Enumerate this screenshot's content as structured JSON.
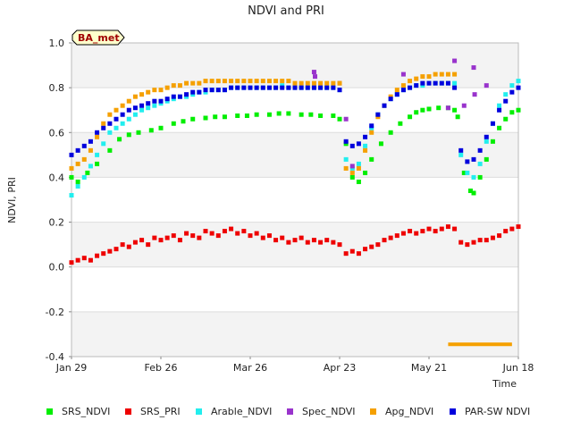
{
  "chart_data": {
    "type": "scatter",
    "title": "NDVI and PRI",
    "site_badge": "BA_met",
    "xlabel": "Time",
    "ylabel": "NDVI, PRI",
    "ylim": [
      -0.4,
      1.0
    ],
    "yticks": [
      -0.4,
      -0.2,
      0.0,
      0.2,
      0.4,
      0.6,
      0.8,
      1.0
    ],
    "ytick_labels": [
      "-0.4",
      "-0.2",
      "0.0",
      "0.2",
      "0.4",
      "0.6",
      "0.8",
      "1.0"
    ],
    "xlim_days": [
      0,
      140
    ],
    "xticks_days": [
      0,
      28,
      56,
      84,
      112,
      140
    ],
    "xtick_labels": [
      "Jan 29",
      "Feb 26",
      "Mar 26",
      "Apr 23",
      "May 21",
      "Jun 18"
    ],
    "colors": {
      "SRS_NDVI": "#00ee00",
      "SRS_PRI": "#ee0000",
      "Arable_NDVI": "#22eeee",
      "Spec_NDVI": "#9933cc",
      "Apg_NDVI": "#f5a000",
      "PAR-SW NDVI": "#0000dd"
    },
    "legend": [
      "SRS_NDVI",
      "SRS_PRI",
      "Arable_NDVI",
      "Spec_NDVI",
      "Apg_NDVI",
      "PAR-SW NDVI"
    ],
    "series": [
      {
        "name": "SRS_NDVI",
        "x": [
          0,
          2,
          5,
          8,
          12,
          15,
          18,
          21,
          25,
          28,
          32,
          35,
          38,
          42,
          45,
          48,
          52,
          55,
          58,
          62,
          65,
          68,
          72,
          75,
          78,
          82,
          84,
          86,
          88,
          90,
          92,
          94,
          97,
          100,
          103,
          106,
          108,
          110,
          112,
          115,
          118,
          120,
          121,
          123,
          125,
          126,
          128,
          130,
          132,
          134,
          136,
          138,
          140
        ],
        "y": [
          0.4,
          0.38,
          0.42,
          0.46,
          0.52,
          0.57,
          0.59,
          0.6,
          0.61,
          0.62,
          0.64,
          0.65,
          0.66,
          0.665,
          0.67,
          0.67,
          0.675,
          0.675,
          0.68,
          0.68,
          0.685,
          0.685,
          0.68,
          0.68,
          0.675,
          0.675,
          0.66,
          0.55,
          0.4,
          0.38,
          0.42,
          0.48,
          0.55,
          0.6,
          0.64,
          0.67,
          0.69,
          0.7,
          0.705,
          0.71,
          0.71,
          0.7,
          0.67,
          0.42,
          0.34,
          0.33,
          0.4,
          0.48,
          0.56,
          0.62,
          0.66,
          0.69,
          0.7
        ]
      },
      {
        "name": "SRS_PRI",
        "x": [
          0,
          2,
          4,
          6,
          8,
          10,
          12,
          14,
          16,
          18,
          20,
          22,
          24,
          26,
          28,
          30,
          32,
          34,
          36,
          38,
          40,
          42,
          44,
          46,
          48,
          50,
          52,
          54,
          56,
          58,
          60,
          62,
          64,
          66,
          68,
          70,
          72,
          74,
          76,
          78,
          80,
          82,
          84,
          86,
          88,
          90,
          92,
          94,
          96,
          98,
          100,
          102,
          104,
          106,
          108,
          110,
          112,
          114,
          116,
          118,
          120,
          122,
          124,
          126,
          128,
          130,
          132,
          134,
          136,
          138,
          140
        ],
        "y": [
          0.02,
          0.03,
          0.04,
          0.03,
          0.05,
          0.06,
          0.07,
          0.08,
          0.1,
          0.09,
          0.11,
          0.12,
          0.1,
          0.13,
          0.12,
          0.13,
          0.14,
          0.12,
          0.15,
          0.14,
          0.13,
          0.16,
          0.15,
          0.14,
          0.16,
          0.17,
          0.15,
          0.16,
          0.14,
          0.15,
          0.13,
          0.14,
          0.12,
          0.13,
          0.11,
          0.12,
          0.13,
          0.11,
          0.12,
          0.11,
          0.12,
          0.11,
          0.1,
          0.06,
          0.07,
          0.06,
          0.08,
          0.09,
          0.1,
          0.12,
          0.13,
          0.14,
          0.15,
          0.16,
          0.15,
          0.16,
          0.17,
          0.16,
          0.17,
          0.18,
          0.17,
          0.11,
          0.1,
          0.11,
          0.12,
          0.12,
          0.13,
          0.14,
          0.16,
          0.17,
          0.18
        ]
      },
      {
        "name": "Arable_NDVI",
        "x": [
          0,
          2,
          4,
          6,
          8,
          10,
          12,
          14,
          16,
          18,
          20,
          22,
          24,
          26,
          28,
          30,
          32,
          34,
          36,
          38,
          40,
          42,
          44,
          46,
          48,
          50,
          52,
          54,
          56,
          58,
          60,
          62,
          64,
          66,
          68,
          70,
          72,
          74,
          76,
          78,
          80,
          82,
          84,
          86,
          88,
          90,
          92,
          94,
          96,
          98,
          100,
          102,
          104,
          106,
          108,
          110,
          112,
          114,
          116,
          118,
          120,
          122,
          124,
          126,
          128,
          130,
          132,
          134,
          136,
          138,
          140
        ],
        "y": [
          0.32,
          0.36,
          0.4,
          0.45,
          0.5,
          0.55,
          0.6,
          0.62,
          0.64,
          0.66,
          0.68,
          0.7,
          0.71,
          0.72,
          0.73,
          0.74,
          0.75,
          0.76,
          0.76,
          0.77,
          0.78,
          0.78,
          0.79,
          0.79,
          0.79,
          0.8,
          0.8,
          0.8,
          0.8,
          0.8,
          0.8,
          0.8,
          0.8,
          0.81,
          0.8,
          0.8,
          0.8,
          0.8,
          0.8,
          0.8,
          0.8,
          0.8,
          0.79,
          0.48,
          0.44,
          0.46,
          0.54,
          0.62,
          0.68,
          0.72,
          0.75,
          0.77,
          0.79,
          0.8,
          0.81,
          0.81,
          0.82,
          0.82,
          0.82,
          0.82,
          0.82,
          0.5,
          0.42,
          0.4,
          0.46,
          0.56,
          0.64,
          0.72,
          0.77,
          0.81,
          0.83
        ]
      },
      {
        "name": "Spec_NDVI",
        "x": [
          76,
          76.3,
          84,
          86,
          88,
          104,
          118,
          120,
          123,
          126,
          126.3,
          130
        ],
        "y": [
          0.87,
          0.85,
          0.82,
          0.66,
          0.45,
          0.86,
          0.71,
          0.92,
          0.72,
          0.89,
          0.77,
          0.81
        ]
      },
      {
        "name": "Apg_NDVI",
        "x": [
          0,
          2,
          4,
          6,
          8,
          10,
          12,
          14,
          16,
          18,
          20,
          22,
          24,
          26,
          28,
          30,
          32,
          34,
          36,
          38,
          40,
          42,
          44,
          46,
          48,
          50,
          52,
          54,
          56,
          58,
          60,
          62,
          64,
          66,
          68,
          70,
          72,
          74,
          76,
          78,
          80,
          82,
          84,
          86,
          88,
          90,
          92,
          94,
          96,
          98,
          100,
          102,
          104,
          106,
          108,
          110,
          112,
          114,
          116,
          118,
          120
        ],
        "y": [
          0.44,
          0.46,
          0.48,
          0.52,
          0.58,
          0.64,
          0.68,
          0.7,
          0.72,
          0.74,
          0.76,
          0.77,
          0.78,
          0.79,
          0.79,
          0.8,
          0.81,
          0.81,
          0.82,
          0.82,
          0.82,
          0.83,
          0.83,
          0.83,
          0.83,
          0.83,
          0.83,
          0.83,
          0.83,
          0.83,
          0.83,
          0.83,
          0.83,
          0.83,
          0.83,
          0.82,
          0.82,
          0.82,
          0.82,
          0.82,
          0.82,
          0.82,
          0.82,
          0.44,
          0.42,
          0.44,
          0.52,
          0.6,
          0.67,
          0.72,
          0.76,
          0.79,
          0.81,
          0.83,
          0.84,
          0.85,
          0.85,
          0.86,
          0.86,
          0.86,
          0.86
        ]
      },
      {
        "name": "PAR-SW NDVI",
        "x": [
          0,
          2,
          4,
          6,
          8,
          10,
          12,
          14,
          16,
          18,
          20,
          22,
          24,
          26,
          28,
          30,
          32,
          34,
          36,
          38,
          40,
          42,
          44,
          46,
          48,
          50,
          52,
          54,
          56,
          58,
          60,
          62,
          64,
          66,
          68,
          70,
          72,
          74,
          76,
          78,
          80,
          82,
          84,
          86,
          88,
          90,
          92,
          94,
          96,
          98,
          100,
          102,
          104,
          106,
          108,
          110,
          112,
          114,
          116,
          118,
          120,
          122,
          124,
          126,
          128,
          130,
          132,
          134,
          136,
          138,
          140
        ],
        "y": [
          0.5,
          0.52,
          0.54,
          0.56,
          0.6,
          0.62,
          0.64,
          0.66,
          0.68,
          0.7,
          0.71,
          0.72,
          0.73,
          0.74,
          0.74,
          0.75,
          0.76,
          0.76,
          0.77,
          0.78,
          0.78,
          0.79,
          0.79,
          0.79,
          0.79,
          0.8,
          0.8,
          0.8,
          0.8,
          0.8,
          0.8,
          0.8,
          0.8,
          0.8,
          0.8,
          0.8,
          0.8,
          0.8,
          0.8,
          0.8,
          0.8,
          0.8,
          0.79,
          0.56,
          0.54,
          0.55,
          0.58,
          0.63,
          0.68,
          0.72,
          0.75,
          0.77,
          0.79,
          0.8,
          0.81,
          0.82,
          0.82,
          0.82,
          0.82,
          0.82,
          0.8,
          0.52,
          0.47,
          0.48,
          0.52,
          0.58,
          0.64,
          0.7,
          0.74,
          0.78,
          0.8
        ]
      }
    ],
    "annotations": [
      {
        "type": "hline",
        "series": "Apg_NDVI",
        "x_start": 118,
        "x_end": 138,
        "y": -0.345
      }
    ]
  }
}
